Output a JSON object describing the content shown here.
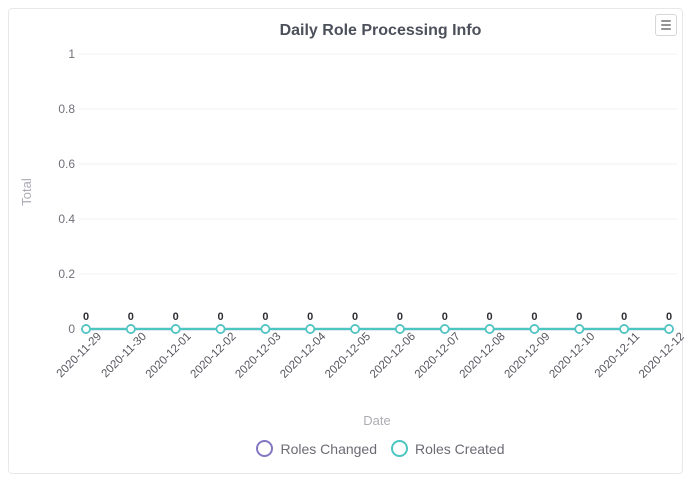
{
  "card": {
    "title": "Daily Role Processing Info"
  },
  "menu": {
    "icon": "hamburger-menu-icon"
  },
  "chart_data": {
    "type": "line",
    "title": "Daily Role Processing Info",
    "xlabel": "Date",
    "ylabel": "Total",
    "categories": [
      "2020-11-29",
      "2020-11-30",
      "2020-12-01",
      "2020-12-02",
      "2020-12-03",
      "2020-12-04",
      "2020-12-05",
      "2020-12-06",
      "2020-12-07",
      "2020-12-08",
      "2020-12-09",
      "2020-12-10",
      "2020-12-11",
      "2020-12-12"
    ],
    "series": [
      {
        "name": "Roles Changed",
        "color": "#8477c4",
        "values": [
          0,
          0,
          0,
          0,
          0,
          0,
          0,
          0,
          0,
          0,
          0,
          0,
          0,
          0
        ]
      },
      {
        "name": "Roles Created",
        "color": "#4dc6c2",
        "values": [
          0,
          0,
          0,
          0,
          0,
          0,
          0,
          0,
          0,
          0,
          0,
          0,
          0,
          0
        ]
      }
    ],
    "ylim": [
      0,
      1
    ],
    "yticks": [
      0,
      0.2,
      0.4,
      0.6,
      0.8,
      1
    ],
    "grid": true,
    "data_labels": true,
    "legend_position": "bottom"
  },
  "colors": {
    "grid": "#f1f1f1",
    "y_tick_label": "#71717b",
    "x_tick_label": "#56565f",
    "axis_title": "#acacb4",
    "data_label": "#2e2e33",
    "card_border": "#e8e8e8"
  }
}
